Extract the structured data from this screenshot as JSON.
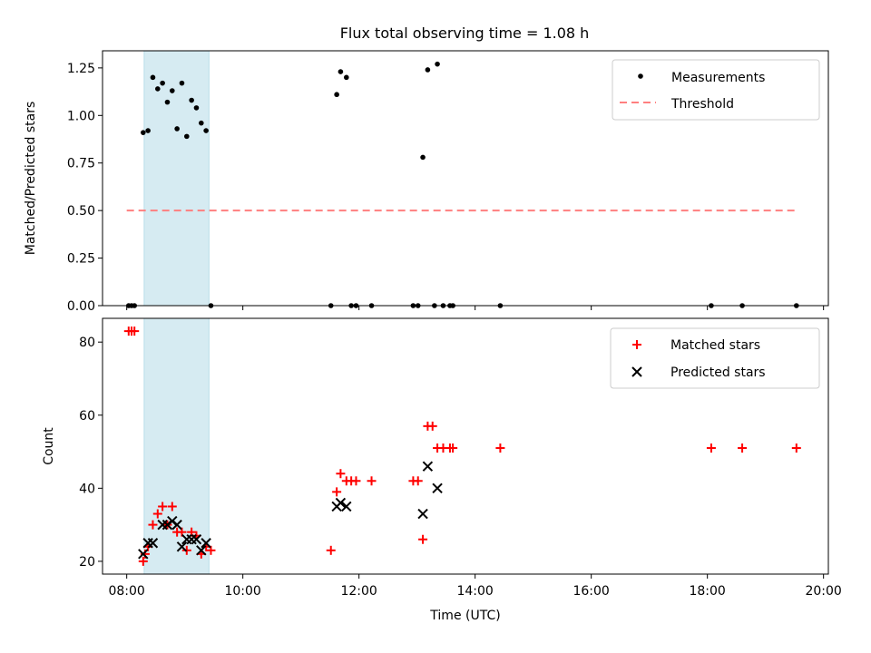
{
  "figure_title": "Flux total observing time = 1.08 h",
  "colors": {
    "measurement": "#000000",
    "threshold": "#ff7f7f",
    "matched": "#ff0000",
    "predicted": "#000000",
    "span_fill": "#add8e6"
  },
  "chart_data": [
    {
      "type": "scatter",
      "title": "Flux total observing time = 1.08 h",
      "xlabel": "",
      "ylabel": "Matched/Predicted stars",
      "ylim": [
        0,
        1.34
      ],
      "y_ticks": [
        "0.00",
        "0.25",
        "0.50",
        "0.75",
        "1.00",
        "1.25"
      ],
      "y_tick_values": [
        0,
        0.25,
        0.5,
        0.75,
        1.0,
        1.25
      ],
      "legend_position": "top-right",
      "legend": [
        "Measurements",
        "Threshold"
      ],
      "highlight_span": [
        "08:18",
        "09:25"
      ],
      "threshold": {
        "name": "Threshold",
        "y": 0.5,
        "x_range": [
          "08:00",
          "19:30"
        ]
      },
      "series": [
        {
          "name": "Measurements",
          "points": [
            [
              "08:02",
              0
            ],
            [
              "08:05",
              0
            ],
            [
              "08:08",
              0
            ],
            [
              "08:17",
              0.91
            ],
            [
              "08:22",
              0.92
            ],
            [
              "08:27",
              1.2
            ],
            [
              "08:32",
              1.14
            ],
            [
              "08:37",
              1.17
            ],
            [
              "08:42",
              1.07
            ],
            [
              "08:47",
              1.13
            ],
            [
              "08:52",
              0.93
            ],
            [
              "08:57",
              1.17
            ],
            [
              "09:02",
              0.89
            ],
            [
              "09:07",
              1.08
            ],
            [
              "09:12",
              1.04
            ],
            [
              "09:17",
              0.96
            ],
            [
              "09:22",
              0.92
            ],
            [
              "09:27",
              0
            ],
            [
              "11:31",
              0
            ],
            [
              "11:37",
              1.11
            ],
            [
              "11:41",
              1.23
            ],
            [
              "11:47",
              1.2
            ],
            [
              "11:52",
              0
            ],
            [
              "11:57",
              0
            ],
            [
              "12:13",
              0
            ],
            [
              "12:56",
              0
            ],
            [
              "13:01",
              0
            ],
            [
              "13:06",
              0.78
            ],
            [
              "13:11",
              1.24
            ],
            [
              "13:18",
              0
            ],
            [
              "13:21",
              1.27
            ],
            [
              "13:27",
              0
            ],
            [
              "13:34",
              0
            ],
            [
              "13:37",
              0
            ],
            [
              "14:26",
              0
            ],
            [
              "18:04",
              0
            ],
            [
              "18:36",
              0
            ],
            [
              "19:32",
              0
            ]
          ]
        }
      ]
    },
    {
      "type": "scatter",
      "title": "",
      "xlabel": "Time (UTC)",
      "ylabel": "Count",
      "ylim": [
        16.5,
        86.5
      ],
      "y_ticks": [
        "20",
        "40",
        "60",
        "80"
      ],
      "y_tick_values": [
        20,
        40,
        60,
        80
      ],
      "x_ticks": [
        "08:00",
        "10:00",
        "12:00",
        "14:00",
        "16:00",
        "18:00",
        "20:00"
      ],
      "x_tick_values": [
        "08:00",
        "10:00",
        "12:00",
        "14:00",
        "16:00",
        "18:00",
        "20:00"
      ],
      "xlim": [
        "07:35",
        "20:05"
      ],
      "legend_position": "top-right",
      "legend": [
        "Matched stars",
        "Predicted stars"
      ],
      "highlight_span": [
        "08:18",
        "09:25"
      ],
      "series": [
        {
          "name": "Matched stars",
          "marker": "plus",
          "points": [
            [
              "08:02",
              83
            ],
            [
              "08:05",
              83
            ],
            [
              "08:08",
              83
            ],
            [
              "08:17",
              20
            ],
            [
              "08:19",
              22
            ],
            [
              "08:22",
              24
            ],
            [
              "08:27",
              30
            ],
            [
              "08:32",
              33
            ],
            [
              "08:37",
              35
            ],
            [
              "08:42",
              30
            ],
            [
              "08:47",
              35
            ],
            [
              "08:52",
              28
            ],
            [
              "08:57",
              28
            ],
            [
              "09:02",
              23
            ],
            [
              "09:07",
              28
            ],
            [
              "09:12",
              27
            ],
            [
              "09:17",
              22
            ],
            [
              "09:22",
              24
            ],
            [
              "09:27",
              23
            ],
            [
              "11:31",
              23
            ],
            [
              "11:37",
              39
            ],
            [
              "11:41",
              44
            ],
            [
              "11:47",
              42
            ],
            [
              "11:52",
              42
            ],
            [
              "11:57",
              42
            ],
            [
              "12:13",
              42
            ],
            [
              "12:56",
              42
            ],
            [
              "13:01",
              42
            ],
            [
              "13:06",
              26
            ],
            [
              "13:11",
              57
            ],
            [
              "13:16",
              57
            ],
            [
              "13:21",
              51
            ],
            [
              "13:27",
              51
            ],
            [
              "13:34",
              51
            ],
            [
              "13:37",
              51
            ],
            [
              "14:26",
              51
            ],
            [
              "18:04",
              51
            ],
            [
              "18:36",
              51
            ],
            [
              "19:32",
              51
            ]
          ]
        },
        {
          "name": "Predicted stars",
          "marker": "x",
          "points": [
            [
              "08:17",
              22
            ],
            [
              "08:22",
              25
            ],
            [
              "08:27",
              25
            ],
            [
              "08:37",
              30
            ],
            [
              "08:42",
              30
            ],
            [
              "08:47",
              31
            ],
            [
              "08:52",
              30
            ],
            [
              "08:57",
              24
            ],
            [
              "09:02",
              26
            ],
            [
              "09:07",
              26
            ],
            [
              "09:12",
              26
            ],
            [
              "09:17",
              23
            ],
            [
              "09:22",
              25
            ],
            [
              "11:37",
              35
            ],
            [
              "11:41",
              36
            ],
            [
              "11:47",
              35
            ],
            [
              "13:06",
              33
            ],
            [
              "13:11",
              46
            ],
            [
              "13:21",
              40
            ]
          ]
        }
      ]
    }
  ]
}
